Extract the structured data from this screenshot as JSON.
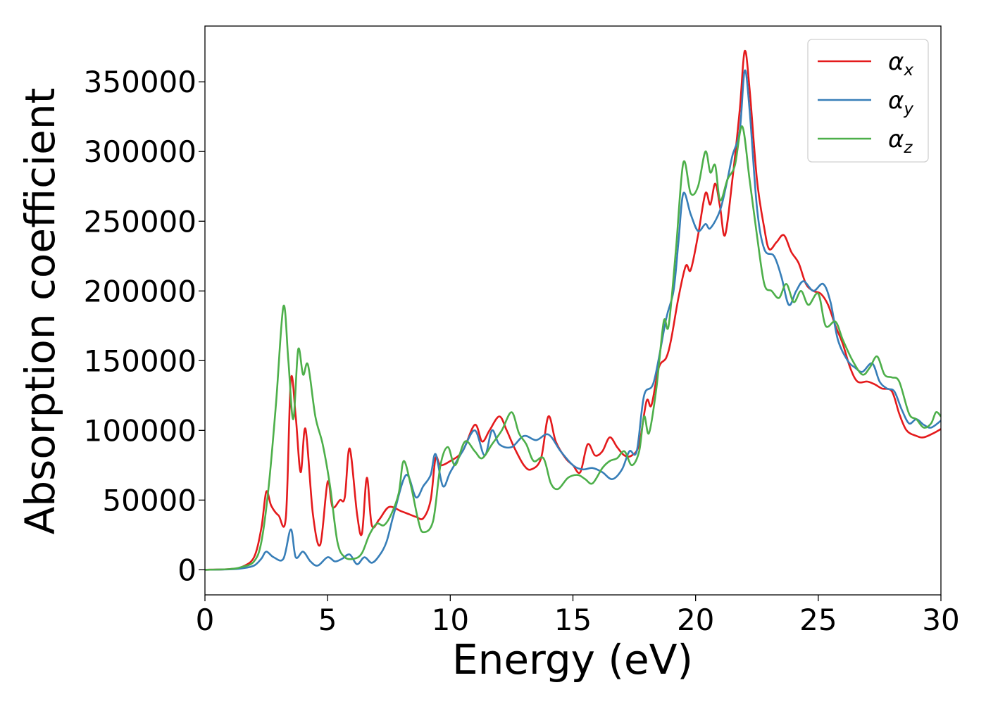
{
  "chart_data": {
    "type": "line",
    "xlabel": "Energy (eV)",
    "ylabel": "Absorption coefficient",
    "xlim": [
      0,
      30
    ],
    "ylim": [
      -18000,
      390000
    ],
    "xticks": [
      0,
      5,
      10,
      15,
      20,
      25,
      30
    ],
    "yticks": [
      0,
      50000,
      100000,
      150000,
      200000,
      250000,
      300000,
      350000
    ],
    "grid": false,
    "legend_position": "top-right",
    "series": [
      {
        "name": "α",
        "subscript": "x",
        "color": "#e41a1c",
        "points": [
          [
            0,
            0
          ],
          [
            1,
            500
          ],
          [
            1.5,
            2000
          ],
          [
            2,
            9000
          ],
          [
            2.3,
            30000
          ],
          [
            2.5,
            56000
          ],
          [
            2.7,
            46000
          ],
          [
            3,
            39000
          ],
          [
            3.3,
            38000
          ],
          [
            3.5,
            136000
          ],
          [
            3.7,
            110000
          ],
          [
            3.9,
            70000
          ],
          [
            4.1,
            101000
          ],
          [
            4.4,
            40000
          ],
          [
            4.7,
            18000
          ],
          [
            5.0,
            63000
          ],
          [
            5.2,
            45000
          ],
          [
            5.5,
            50000
          ],
          [
            5.7,
            52000
          ],
          [
            5.9,
            87000
          ],
          [
            6.2,
            40000
          ],
          [
            6.4,
            26000
          ],
          [
            6.6,
            66000
          ],
          [
            6.8,
            32000
          ],
          [
            7.1,
            36000
          ],
          [
            7.5,
            45000
          ],
          [
            8,
            42000
          ],
          [
            8.3,
            40000
          ],
          [
            8.6,
            38000
          ],
          [
            8.9,
            37000
          ],
          [
            9.2,
            50000
          ],
          [
            9.4,
            80000
          ],
          [
            9.6,
            75000
          ],
          [
            10,
            78000
          ],
          [
            10.5,
            85000
          ],
          [
            11,
            104000
          ],
          [
            11.3,
            92000
          ],
          [
            11.6,
            100000
          ],
          [
            12,
            110000
          ],
          [
            12.3,
            100000
          ],
          [
            12.6,
            88000
          ],
          [
            13,
            75000
          ],
          [
            13.3,
            72000
          ],
          [
            13.7,
            80000
          ],
          [
            14,
            110000
          ],
          [
            14.3,
            92000
          ],
          [
            14.7,
            80000
          ],
          [
            15,
            75000
          ],
          [
            15.3,
            70000
          ],
          [
            15.6,
            90000
          ],
          [
            15.9,
            82000
          ],
          [
            16.2,
            85000
          ],
          [
            16.5,
            95000
          ],
          [
            16.8,
            88000
          ],
          [
            17.1,
            82000
          ],
          [
            17.4,
            82000
          ],
          [
            17.7,
            90000
          ],
          [
            18.0,
            121000
          ],
          [
            18.2,
            118000
          ],
          [
            18.5,
            145000
          ],
          [
            18.8,
            152000
          ],
          [
            19,
            165000
          ],
          [
            19.3,
            195000
          ],
          [
            19.6,
            218000
          ],
          [
            19.8,
            215000
          ],
          [
            20.1,
            240000
          ],
          [
            20.4,
            270000
          ],
          [
            20.6,
            262000
          ],
          [
            20.8,
            277000
          ],
          [
            21,
            260000
          ],
          [
            21.2,
            240000
          ],
          [
            21.5,
            280000
          ],
          [
            21.8,
            330000
          ],
          [
            22.0,
            372000
          ],
          [
            22.2,
            345000
          ],
          [
            22.5,
            280000
          ],
          [
            22.8,
            245000
          ],
          [
            23.0,
            230000
          ],
          [
            23.3,
            235000
          ],
          [
            23.6,
            240000
          ],
          [
            23.9,
            228000
          ],
          [
            24.2,
            220000
          ],
          [
            24.5,
            205000
          ],
          [
            24.8,
            200000
          ],
          [
            25.1,
            198000
          ],
          [
            25.4,
            190000
          ],
          [
            25.7,
            175000
          ],
          [
            26.0,
            162000
          ],
          [
            26.3,
            145000
          ],
          [
            26.6,
            135000
          ],
          [
            27.0,
            135000
          ],
          [
            27.3,
            133000
          ],
          [
            27.6,
            130000
          ],
          [
            28.0,
            128000
          ],
          [
            28.3,
            112000
          ],
          [
            28.6,
            100000
          ],
          [
            29.0,
            96000
          ],
          [
            29.3,
            95000
          ],
          [
            29.7,
            98000
          ],
          [
            30,
            101000
          ]
        ]
      },
      {
        "name": "α",
        "subscript": "y",
        "color": "#377eb8",
        "points": [
          [
            0,
            0
          ],
          [
            1,
            300
          ],
          [
            1.5,
            1000
          ],
          [
            2,
            3000
          ],
          [
            2.3,
            8000
          ],
          [
            2.5,
            13000
          ],
          [
            2.8,
            9000
          ],
          [
            3.2,
            8000
          ],
          [
            3.5,
            29000
          ],
          [
            3.7,
            9000
          ],
          [
            4.0,
            13000
          ],
          [
            4.3,
            6000
          ],
          [
            4.6,
            3000
          ],
          [
            5.0,
            9000
          ],
          [
            5.3,
            6000
          ],
          [
            5.6,
            8000
          ],
          [
            5.9,
            11000
          ],
          [
            6.2,
            4000
          ],
          [
            6.5,
            9000
          ],
          [
            6.8,
            5000
          ],
          [
            7.1,
            10000
          ],
          [
            7.4,
            20000
          ],
          [
            7.7,
            40000
          ],
          [
            8.2,
            68000
          ],
          [
            8.6,
            52000
          ],
          [
            8.9,
            60000
          ],
          [
            9.2,
            68000
          ],
          [
            9.4,
            83000
          ],
          [
            9.7,
            60000
          ],
          [
            10,
            70000
          ],
          [
            10.5,
            85000
          ],
          [
            11,
            100000
          ],
          [
            11.4,
            82000
          ],
          [
            11.7,
            100000
          ],
          [
            12,
            90000
          ],
          [
            12.5,
            88000
          ],
          [
            13,
            96000
          ],
          [
            13.5,
            93000
          ],
          [
            14,
            97000
          ],
          [
            14.5,
            85000
          ],
          [
            15,
            75000
          ],
          [
            15.4,
            72000
          ],
          [
            15.8,
            73000
          ],
          [
            16.2,
            70000
          ],
          [
            16.6,
            65000
          ],
          [
            17,
            72000
          ],
          [
            17.3,
            85000
          ],
          [
            17.6,
            85000
          ],
          [
            17.9,
            125000
          ],
          [
            18.3,
            135000
          ],
          [
            18.8,
            180000
          ],
          [
            19.1,
            200000
          ],
          [
            19.3,
            235000
          ],
          [
            19.5,
            270000
          ],
          [
            19.8,
            255000
          ],
          [
            20.1,
            243000
          ],
          [
            20.4,
            248000
          ],
          [
            20.6,
            245000
          ],
          [
            21.0,
            258000
          ],
          [
            21.3,
            280000
          ],
          [
            21.5,
            297000
          ],
          [
            21.8,
            315000
          ],
          [
            22.0,
            358000
          ],
          [
            22.2,
            330000
          ],
          [
            22.5,
            260000
          ],
          [
            22.8,
            230000
          ],
          [
            23.2,
            225000
          ],
          [
            23.5,
            210000
          ],
          [
            23.8,
            190000
          ],
          [
            24.1,
            200000
          ],
          [
            24.4,
            207000
          ],
          [
            24.8,
            200000
          ],
          [
            25.2,
            205000
          ],
          [
            25.5,
            192000
          ],
          [
            25.8,
            165000
          ],
          [
            26.2,
            150000
          ],
          [
            26.5,
            145000
          ],
          [
            26.8,
            142000
          ],
          [
            27.2,
            148000
          ],
          [
            27.5,
            135000
          ],
          [
            27.8,
            130000
          ],
          [
            28.1,
            128000
          ],
          [
            28.4,
            115000
          ],
          [
            28.7,
            105000
          ],
          [
            29.0,
            108000
          ],
          [
            29.3,
            104000
          ],
          [
            29.6,
            102000
          ],
          [
            30,
            107000
          ]
        ]
      },
      {
        "name": "α",
        "subscript": "z",
        "color": "#4daf4a",
        "points": [
          [
            0,
            0
          ],
          [
            1,
            500
          ],
          [
            1.5,
            2000
          ],
          [
            2,
            6000
          ],
          [
            2.3,
            20000
          ],
          [
            2.6,
            60000
          ],
          [
            2.9,
            120000
          ],
          [
            3.2,
            189000
          ],
          [
            3.4,
            150000
          ],
          [
            3.6,
            108000
          ],
          [
            3.8,
            158000
          ],
          [
            4.0,
            140000
          ],
          [
            4.2,
            147000
          ],
          [
            4.5,
            110000
          ],
          [
            4.8,
            90000
          ],
          [
            5.1,
            60000
          ],
          [
            5.4,
            20000
          ],
          [
            5.7,
            9000
          ],
          [
            6.1,
            8000
          ],
          [
            6.4,
            12000
          ],
          [
            6.7,
            25000
          ],
          [
            7.0,
            33000
          ],
          [
            7.3,
            32000
          ],
          [
            7.6,
            40000
          ],
          [
            7.9,
            55000
          ],
          [
            8.1,
            78000
          ],
          [
            8.4,
            60000
          ],
          [
            8.7,
            35000
          ],
          [
            8.9,
            27000
          ],
          [
            9.3,
            35000
          ],
          [
            9.6,
            75000
          ],
          [
            9.9,
            88000
          ],
          [
            10.2,
            75000
          ],
          [
            10.6,
            92000
          ],
          [
            11.0,
            85000
          ],
          [
            11.3,
            80000
          ],
          [
            11.7,
            90000
          ],
          [
            12.1,
            100000
          ],
          [
            12.5,
            113000
          ],
          [
            12.8,
            98000
          ],
          [
            13.1,
            90000
          ],
          [
            13.4,
            78000
          ],
          [
            13.8,
            80000
          ],
          [
            14.1,
            62000
          ],
          [
            14.4,
            58000
          ],
          [
            14.8,
            66000
          ],
          [
            15.2,
            68000
          ],
          [
            15.5,
            65000
          ],
          [
            15.8,
            62000
          ],
          [
            16.2,
            73000
          ],
          [
            16.5,
            78000
          ],
          [
            16.8,
            80000
          ],
          [
            17.1,
            85000
          ],
          [
            17.4,
            75000
          ],
          [
            17.7,
            85000
          ],
          [
            17.9,
            110000
          ],
          [
            18.1,
            98000
          ],
          [
            18.4,
            130000
          ],
          [
            18.7,
            178000
          ],
          [
            18.9,
            175000
          ],
          [
            19.2,
            230000
          ],
          [
            19.5,
            292000
          ],
          [
            19.8,
            270000
          ],
          [
            20.1,
            275000
          ],
          [
            20.4,
            300000
          ],
          [
            20.6,
            285000
          ],
          [
            20.8,
            290000
          ],
          [
            21.0,
            265000
          ],
          [
            21.3,
            280000
          ],
          [
            21.6,
            290000
          ],
          [
            21.9,
            318000
          ],
          [
            22.2,
            280000
          ],
          [
            22.5,
            240000
          ],
          [
            22.8,
            205000
          ],
          [
            23.1,
            200000
          ],
          [
            23.4,
            195000
          ],
          [
            23.7,
            205000
          ],
          [
            24.0,
            192000
          ],
          [
            24.3,
            200000
          ],
          [
            24.6,
            190000
          ],
          [
            25.0,
            198000
          ],
          [
            25.3,
            175000
          ],
          [
            25.7,
            178000
          ],
          [
            26.0,
            165000
          ],
          [
            26.4,
            150000
          ],
          [
            26.8,
            140000
          ],
          [
            27.1,
            145000
          ],
          [
            27.4,
            153000
          ],
          [
            27.7,
            140000
          ],
          [
            28.0,
            138000
          ],
          [
            28.3,
            135000
          ],
          [
            28.7,
            112000
          ],
          [
            29.0,
            108000
          ],
          [
            29.3,
            102000
          ],
          [
            29.6,
            105000
          ],
          [
            29.8,
            113000
          ],
          [
            30,
            110000
          ]
        ]
      }
    ]
  }
}
